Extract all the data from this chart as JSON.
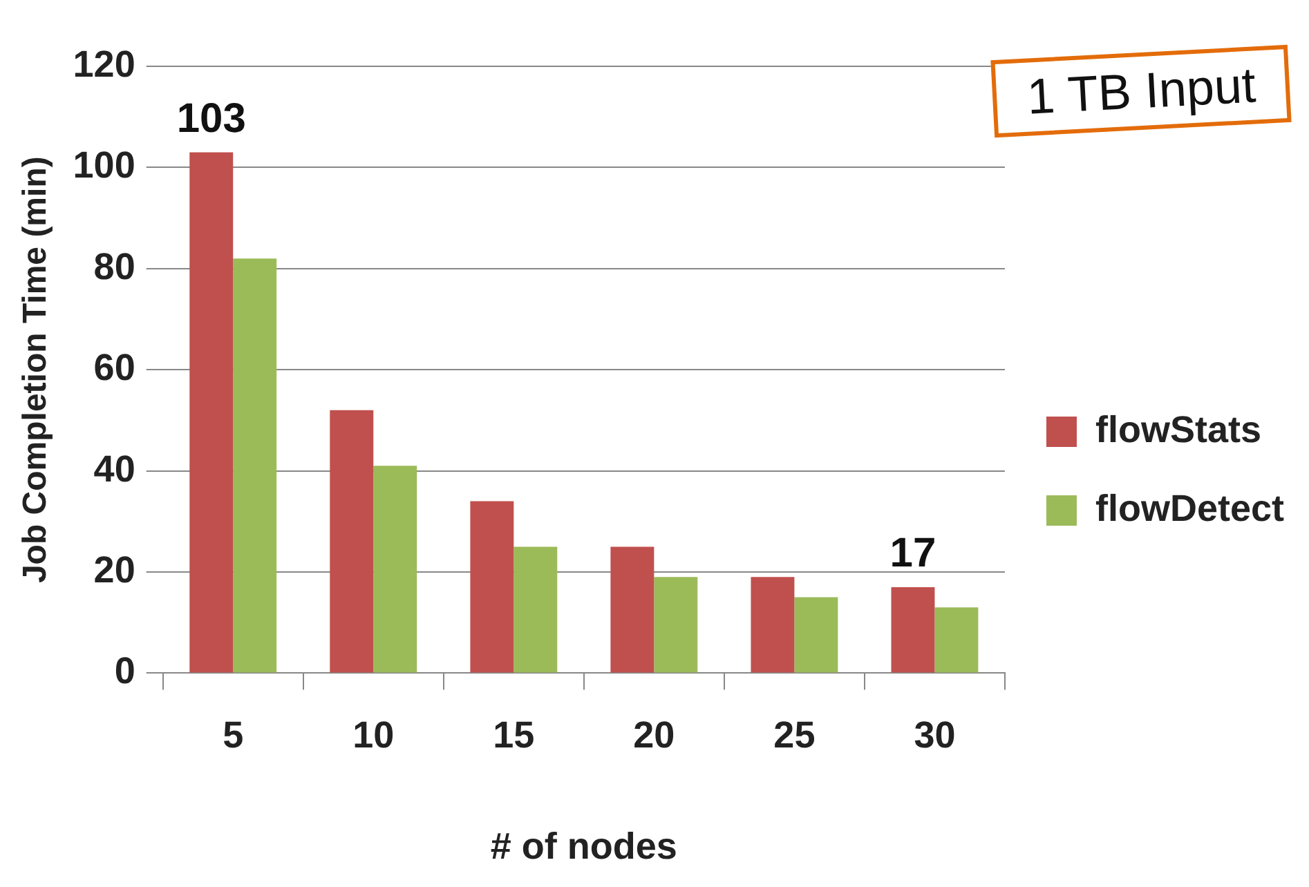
{
  "chart_data": {
    "type": "bar",
    "xlabel": "# of nodes",
    "ylabel": "Job Completion Time (min)",
    "categories": [
      "5",
      "10",
      "15",
      "20",
      "25",
      "30"
    ],
    "series": [
      {
        "name": "flowStats",
        "color": "#c0504d",
        "values": [
          103,
          52,
          34,
          25,
          19,
          17
        ],
        "value_labels": [
          "103",
          null,
          null,
          null,
          null,
          "17"
        ]
      },
      {
        "name": "flowDetect",
        "color": "#9bbb59",
        "values": [
          82,
          41,
          25,
          19,
          15,
          13
        ]
      }
    ],
    "ylim": [
      0,
      120
    ],
    "yticks": [
      0,
      20,
      40,
      60,
      80,
      100,
      120
    ],
    "grid": "y",
    "legend": "right",
    "annotations": [
      "1 TB Input"
    ]
  }
}
